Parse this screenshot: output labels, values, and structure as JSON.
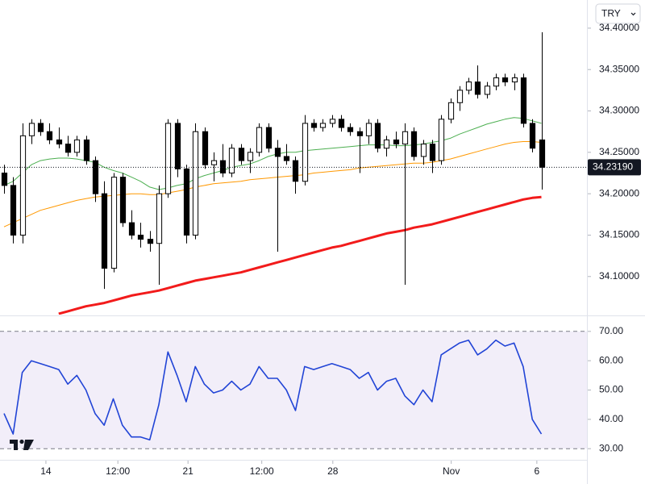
{
  "currency": "TRY",
  "chart_data": [
    {
      "type": "candlestick",
      "xlim": [
        -0.44,
        64
      ],
      "ylim": [
        34.054,
        34.434
      ],
      "yticks": [
        {
          "value": 34.1,
          "label": "34.10000"
        },
        {
          "value": 34.15,
          "label": "34.15000"
        },
        {
          "value": 34.2,
          "label": "34.20000"
        },
        {
          "value": 34.25,
          "label": "34.25000"
        },
        {
          "value": 34.3,
          "label": "34.30000"
        },
        {
          "value": 34.35,
          "label": "34.35000"
        },
        {
          "value": 34.4,
          "label": "34.40000"
        }
      ],
      "last_price": {
        "value": 34.2319,
        "label": "34.23190"
      },
      "up_color": "#ffffff",
      "down_color": "#000000",
      "open": [
        34.225,
        34.21,
        34.15,
        34.27,
        34.285,
        34.275,
        34.265,
        34.26,
        34.25,
        34.265,
        34.24,
        34.2,
        34.11,
        34.22,
        34.165,
        34.15,
        34.145,
        34.14,
        34.2,
        34.285,
        34.23,
        34.15,
        34.275,
        34.235,
        34.24,
        34.225,
        34.255,
        34.24,
        34.25,
        34.28,
        34.255,
        34.245,
        34.24,
        34.215,
        34.285,
        34.28,
        34.285,
        34.29,
        34.28,
        34.275,
        34.27,
        34.285,
        34.255,
        34.265,
        34.26,
        34.275,
        34.245,
        34.26,
        34.24,
        34.29,
        34.31,
        34.325,
        34.335,
        34.32,
        34.33,
        34.34,
        34.335,
        34.34,
        34.285,
        34.265
      ],
      "high": [
        34.235,
        34.22,
        34.285,
        34.29,
        34.29,
        34.285,
        34.28,
        34.27,
        34.27,
        34.27,
        34.245,
        34.215,
        34.225,
        34.225,
        34.18,
        34.165,
        34.155,
        34.21,
        34.29,
        34.29,
        34.235,
        34.285,
        34.28,
        34.25,
        34.26,
        34.26,
        34.26,
        34.255,
        34.285,
        34.285,
        34.265,
        34.26,
        34.245,
        34.295,
        34.29,
        34.29,
        34.295,
        34.295,
        34.285,
        34.28,
        34.29,
        34.29,
        34.27,
        34.275,
        34.285,
        34.28,
        34.265,
        34.265,
        34.295,
        34.315,
        34.33,
        34.34,
        34.355,
        34.335,
        34.345,
        34.345,
        34.345,
        34.345,
        34.29,
        34.395
      ],
      "low": [
        34.2,
        34.14,
        34.14,
        34.26,
        34.27,
        34.26,
        34.255,
        34.245,
        34.245,
        34.235,
        34.19,
        34.085,
        34.105,
        34.16,
        34.145,
        34.135,
        34.13,
        34.09,
        34.195,
        34.22,
        34.14,
        34.145,
        34.23,
        34.215,
        34.22,
        34.22,
        34.235,
        34.225,
        34.245,
        34.25,
        34.13,
        34.235,
        34.2,
        34.21,
        34.275,
        34.275,
        34.28,
        34.275,
        34.27,
        34.225,
        34.26,
        34.25,
        34.245,
        34.255,
        34.09,
        34.24,
        34.235,
        34.225,
        34.235,
        34.285,
        34.3,
        34.32,
        34.315,
        34.315,
        34.325,
        34.33,
        34.325,
        34.28,
        34.25,
        34.205
      ],
      "close": [
        34.21,
        34.15,
        34.27,
        34.285,
        34.275,
        34.265,
        34.26,
        34.25,
        34.265,
        34.24,
        34.2,
        34.11,
        34.22,
        34.165,
        34.15,
        34.145,
        34.14,
        34.2,
        34.285,
        34.23,
        34.15,
        34.275,
        34.235,
        34.24,
        34.225,
        34.255,
        34.24,
        34.25,
        34.28,
        34.255,
        34.245,
        34.24,
        34.215,
        34.285,
        34.28,
        34.285,
        34.29,
        34.28,
        34.275,
        34.27,
        34.285,
        34.255,
        34.265,
        34.26,
        34.275,
        34.245,
        34.26,
        34.24,
        34.29,
        34.31,
        34.325,
        34.335,
        34.32,
        34.33,
        34.34,
        34.335,
        34.34,
        34.285,
        34.255,
        34.2319
      ],
      "lines": [
        {
          "color": "#4caf50",
          "width": 1,
          "values": [
            34.21,
            34.215,
            34.225,
            34.235,
            34.24,
            34.242,
            34.243,
            34.243,
            34.242,
            34.24,
            34.238,
            34.232,
            34.228,
            34.225,
            34.22,
            34.215,
            34.208,
            34.205,
            34.207,
            34.21,
            34.212,
            34.218,
            34.222,
            34.225,
            34.228,
            34.232,
            34.234,
            34.236,
            34.24,
            34.245,
            34.248,
            34.25,
            34.25,
            34.252,
            34.253,
            34.254,
            34.255,
            34.256,
            34.257,
            34.258,
            34.259,
            34.259,
            34.259,
            34.258,
            34.258,
            34.259,
            34.26,
            34.262,
            34.264,
            34.267,
            34.272,
            34.276,
            34.28,
            34.284,
            34.287,
            34.29,
            34.292,
            34.291,
            34.288,
            34.285
          ]
        },
        {
          "color": "#ff9800",
          "width": 1,
          "values": [
            34.16,
            34.165,
            34.17,
            34.175,
            34.18,
            34.183,
            34.186,
            34.189,
            34.192,
            34.194,
            34.196,
            34.197,
            34.198,
            34.199,
            34.2,
            34.2,
            34.199,
            34.199,
            34.201,
            34.203,
            34.205,
            34.208,
            34.21,
            34.212,
            34.213,
            34.214,
            34.215,
            34.217,
            34.218,
            34.219,
            34.22,
            34.221,
            34.222,
            34.223,
            34.225,
            34.226,
            34.227,
            34.228,
            34.229,
            34.231,
            34.232,
            34.233,
            34.234,
            34.235,
            34.236,
            34.237,
            34.237,
            34.238,
            34.24,
            34.242,
            34.245,
            34.248,
            34.251,
            34.254,
            34.257,
            34.26,
            34.262,
            34.263,
            34.263,
            34.262
          ]
        },
        {
          "color": "#f21b1b",
          "width": 3,
          "values": [
            null,
            null,
            null,
            null,
            null,
            null,
            34.055,
            34.058,
            34.061,
            34.064,
            34.066,
            34.068,
            34.071,
            34.074,
            34.077,
            34.079,
            34.081,
            34.083,
            34.086,
            34.089,
            34.092,
            34.095,
            34.097,
            34.099,
            34.101,
            34.103,
            34.105,
            34.108,
            34.111,
            34.114,
            34.117,
            34.12,
            34.123,
            34.126,
            34.129,
            34.132,
            34.135,
            34.137,
            34.14,
            34.143,
            34.146,
            34.149,
            34.152,
            34.154,
            34.156,
            34.159,
            34.161,
            34.163,
            34.166,
            34.169,
            34.172,
            34.175,
            34.178,
            34.181,
            34.184,
            34.187,
            34.19,
            34.193,
            34.195,
            34.196
          ]
        }
      ]
    },
    {
      "type": "line",
      "xlim": [
        -0.44,
        64
      ],
      "ylim": [
        26.2,
        74.9
      ],
      "yticks": [
        {
          "value": 30,
          "label": "30.00"
        },
        {
          "value": 40,
          "label": "40.00"
        },
        {
          "value": 50,
          "label": "50.00"
        },
        {
          "value": 60,
          "label": "60.00"
        },
        {
          "value": 70,
          "label": "70.00"
        }
      ],
      "band": [
        30,
        70
      ],
      "band_color": "#7e57c2",
      "xticks": [
        {
          "value": 4.6,
          "label": "14"
        },
        {
          "value": 12.5,
          "label": "12:00"
        },
        {
          "value": 20.2,
          "label": "21"
        },
        {
          "value": 28.3,
          "label": "12:00"
        },
        {
          "value": 36.1,
          "label": "28"
        },
        {
          "value": 49.1,
          "label": "Nov"
        },
        {
          "value": 58.5,
          "label": "6"
        }
      ],
      "color": "#2144d6",
      "values": [
        42,
        35,
        56,
        60,
        59,
        58,
        57,
        52,
        55,
        50,
        42,
        38,
        47,
        38,
        34,
        34,
        33,
        45,
        63,
        55,
        46,
        58,
        52,
        49,
        50,
        53,
        50,
        52,
        58,
        54,
        54,
        50,
        43,
        58,
        57,
        58,
        59,
        58,
        57,
        54,
        56,
        50,
        53,
        54,
        48,
        45,
        50,
        46,
        62,
        64,
        66,
        67,
        62,
        64,
        67,
        65,
        66,
        58,
        40,
        35
      ]
    }
  ]
}
